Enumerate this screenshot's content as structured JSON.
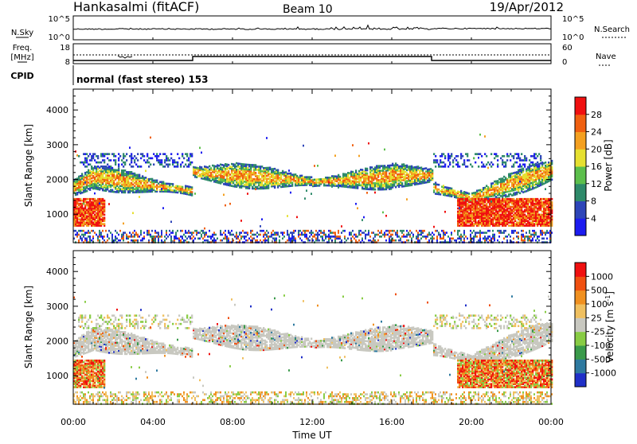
{
  "header": {
    "station": "Hankasalmi (fitACF)",
    "beam": "Beam 10",
    "date": "19/Apr/2012"
  },
  "noise_panel": {
    "left_label": "N.Sky",
    "right_label": "N.Search",
    "left_ticks": [
      "10^5",
      "10^0"
    ],
    "right_ticks": [
      "10^5",
      "10^0"
    ]
  },
  "freq_panel": {
    "left_label_1": "Freq.",
    "left_label_2": "[MHz]",
    "right_label": "Nave",
    "left_ticks": [
      "18",
      "8"
    ],
    "right_ticks": [
      "60",
      "0"
    ]
  },
  "cpid": {
    "label": "CPID",
    "program": "normal (fast stereo) 153"
  },
  "chart_data": [
    {
      "type": "heatmap",
      "parameter": "power",
      "xlabel": "Time UT",
      "ylabel": "Slant Range [km]",
      "xlim": [
        "00:00",
        "24:00"
      ],
      "ylim": [
        180,
        4600
      ],
      "y_ticks": [
        1000,
        2000,
        3000,
        4000
      ],
      "colorbar": {
        "label": "Power [dB]",
        "ticks": [
          "4",
          "8",
          "12",
          "16",
          "20",
          "24",
          "28"
        ],
        "colors": [
          "#1c1cf0",
          "#2d45b8",
          "#2e8a6a",
          "#5cbf4c",
          "#e6e030",
          "#f4a020",
          "#f06010",
          "#f01010"
        ]
      }
    },
    {
      "type": "heatmap",
      "parameter": "velocity",
      "xlabel": "Time UT",
      "ylabel": "Slant Range [km]",
      "xlim": [
        "00:00",
        "24:00"
      ],
      "ylim": [
        180,
        4600
      ],
      "y_ticks": [
        1000,
        2000,
        3000,
        4000
      ],
      "colorbar": {
        "label": "Velocity [m s",
        "label_sup": "-1",
        "label_end": "]",
        "ticks": [
          "1000",
          "500",
          "100",
          "25",
          "-25",
          "-100",
          "-500",
          "-1000"
        ],
        "colors": [
          "#2030c8",
          "#2e7aa0",
          "#3a9a4a",
          "#88cc44",
          "#c8c8c0",
          "#f0c060",
          "#f09020",
          "#f05010",
          "#f01010"
        ]
      }
    }
  ],
  "x_ticks": [
    "00:00",
    "04:00",
    "08:00",
    "12:00",
    "16:00",
    "20:00",
    "00:00"
  ]
}
